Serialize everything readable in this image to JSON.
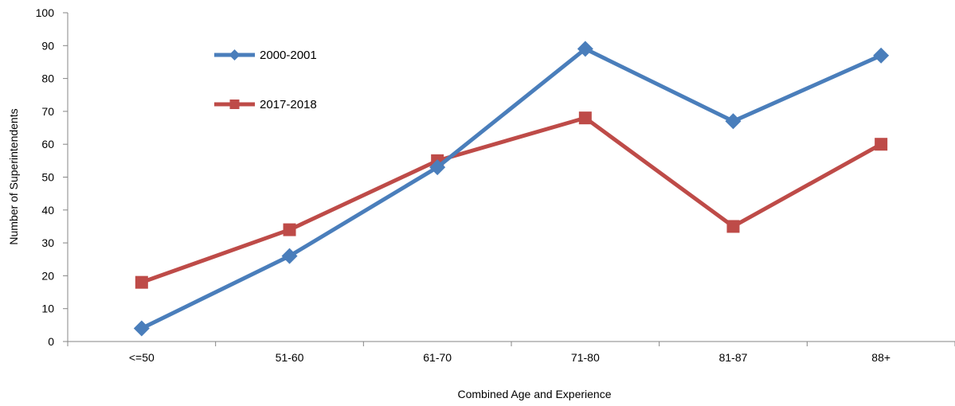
{
  "chart_data": {
    "type": "line",
    "title": "",
    "xlabel": "Combined Age and Experience",
    "ylabel": "Number of Superintendents",
    "categories": [
      "<=50",
      "51-60",
      "61-70",
      "71-80",
      "81-87",
      "88+"
    ],
    "ylim": [
      0,
      100
    ],
    "yticks": [
      "0",
      "10",
      "20",
      "30",
      "40",
      "50",
      "60",
      "70",
      "80",
      "90",
      "100"
    ],
    "grid": false,
    "legend_position": "top-left",
    "series": [
      {
        "name": "2000-2001",
        "values": [
          4,
          26,
          53,
          89,
          67,
          87
        ],
        "color": "#4a7ebb",
        "marker": "diamond"
      },
      {
        "name": "2017-2018",
        "values": [
          18,
          34,
          55,
          68,
          35,
          60
        ],
        "color": "#be4b48",
        "marker": "square"
      }
    ]
  }
}
